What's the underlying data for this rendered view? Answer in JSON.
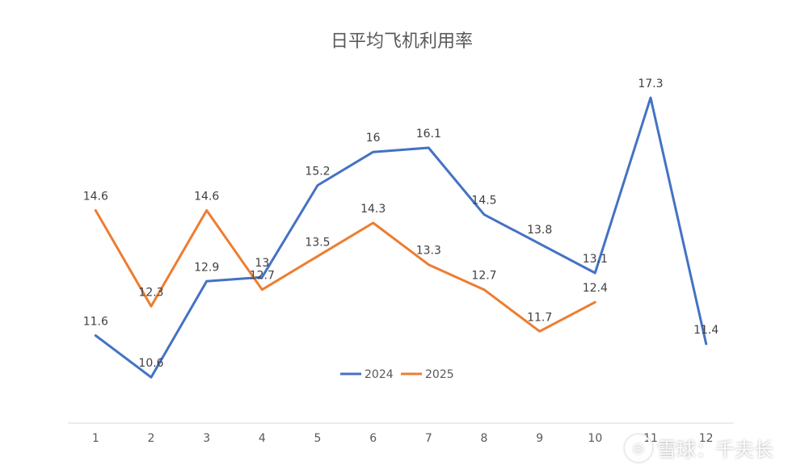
{
  "chart_data": {
    "type": "line",
    "title": "日平均飞机利用率",
    "categories": [
      "1",
      "2",
      "3",
      "4",
      "5",
      "6",
      "7",
      "8",
      "9",
      "10",
      "11",
      "12"
    ],
    "series": [
      {
        "name": "2024",
        "color": "#4472C4",
        "values": [
          11.6,
          10.6,
          12.9,
          13,
          15.2,
          16,
          16.1,
          14.5,
          13.8,
          13.1,
          17.3,
          11.4
        ],
        "labels": [
          "11.6",
          "10.6",
          "12.9",
          "13",
          "15.2",
          "16",
          "16.1",
          "14.5",
          "13.8",
          "13.1",
          "17.3",
          "11.4"
        ]
      },
      {
        "name": "2025",
        "color": "#ED7D31",
        "values": [
          14.6,
          12.3,
          14.6,
          12.7,
          13.5,
          14.3,
          13.3,
          12.7,
          11.7,
          12.4,
          null,
          null
        ],
        "labels": [
          "14.6",
          "12.3",
          "14.6",
          "12.7",
          "13.5",
          "14.3",
          "13.3",
          "12.7",
          "11.7",
          "12.4",
          null,
          null
        ]
      }
    ],
    "ylim": [
      9.5,
      17.9
    ],
    "grid": false,
    "legend": "bottom-center",
    "xlabel": "",
    "ylabel": ""
  },
  "watermark": {
    "logo_text": "◎",
    "text": "雪球：千夫长"
  }
}
